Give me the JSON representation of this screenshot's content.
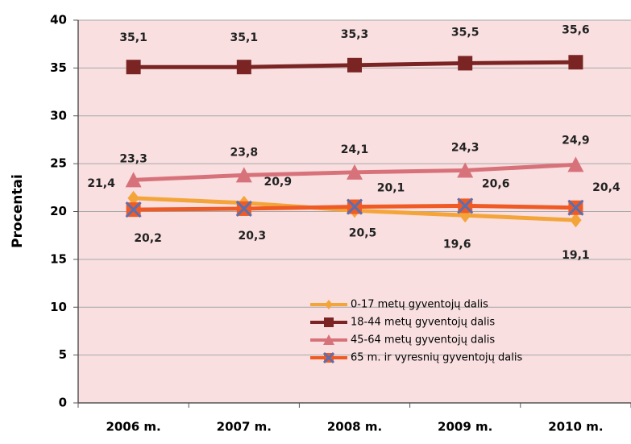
{
  "chart_data": {
    "type": "line",
    "ylabel": "Procentai",
    "categories": [
      "2006 m.",
      "2007 m.",
      "2008 m.",
      "2009 m.",
      "2010 m."
    ],
    "ylim": [
      0,
      40
    ],
    "yticks": [
      0,
      5,
      10,
      15,
      20,
      25,
      30,
      35,
      40
    ],
    "grid": true,
    "legend": "lower right",
    "series": [
      {
        "name": "0-17 metų gyventojų dalis",
        "color": "#f4a53a",
        "marker": "diamond",
        "values": [
          21.4,
          20.9,
          20.1,
          19.6,
          19.1
        ],
        "value_labels": [
          "21,4",
          "20,9",
          "20,1",
          "19,6",
          "19,1"
        ]
      },
      {
        "name": "18-44 metų gyventojų dalis",
        "color": "#7a2424",
        "marker": "square",
        "values": [
          35.1,
          35.1,
          35.3,
          35.5,
          35.6
        ],
        "value_labels": [
          "35,1",
          "35,1",
          "35,3",
          "35,5",
          "35,6"
        ]
      },
      {
        "name": "45-64 metų gyventojų dalis",
        "color": "#d8727a",
        "marker": "triangle",
        "values": [
          23.3,
          23.8,
          24.1,
          24.3,
          24.9
        ],
        "value_labels": [
          "23,3",
          "23,8",
          "24,1",
          "24,3",
          "24,9"
        ]
      },
      {
        "name": "65 m. ir vyresnių gyventojų dalis",
        "color": "#f05a24",
        "marker": "xsquare",
        "values": [
          20.2,
          20.3,
          20.5,
          20.6,
          20.4
        ],
        "value_labels": [
          "20,2",
          "20,3",
          "20,5",
          "20,6",
          "20,4"
        ]
      }
    ]
  }
}
